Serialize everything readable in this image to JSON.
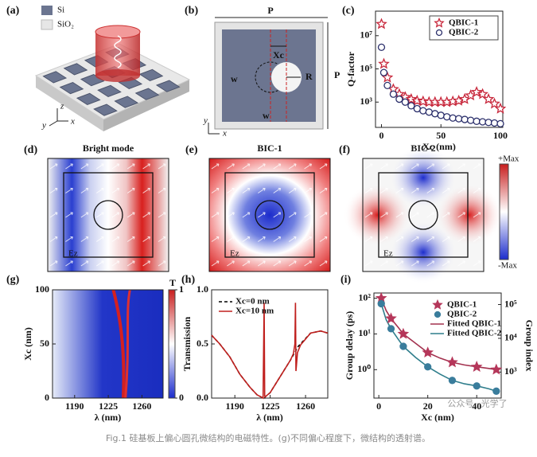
{
  "panels": {
    "a": {
      "label": "(a)",
      "materials": [
        "Si",
        "SiO₂"
      ],
      "axes": [
        "z",
        "y",
        "x"
      ]
    },
    "b": {
      "label": "(b)",
      "period_labels": [
        "P",
        "P"
      ],
      "offset": "Xc",
      "radius": "R",
      "width_labels": [
        "w",
        "w"
      ],
      "axes": [
        "y",
        "x"
      ]
    }
  },
  "field_maps": [
    {
      "panel": "(d)",
      "title": "Bright mode",
      "field": "Ez"
    },
    {
      "panel": "(e)",
      "title": "BIC-1",
      "field": "Ez"
    },
    {
      "panel": "(f)",
      "title": "BIC-2",
      "field": "Ez"
    }
  ],
  "field_colorbar": [
    "+Max",
    "-Max"
  ],
  "chart_data": [
    {
      "type": "scatter",
      "panel": "(c)",
      "xlabel": "Xc (nm)",
      "ylabel": "Q-factor",
      "xlim": [
        -5,
        102
      ],
      "xticks": [
        0,
        50,
        100
      ],
      "ylog": true,
      "ylim": [
        30,
        300000000
      ],
      "yticks": [
        {
          "value": 1000,
          "label": "10³"
        },
        {
          "value": 100000,
          "label": "10⁵"
        },
        {
          "value": 10000000,
          "label": "10⁷"
        }
      ],
      "legend": "upper right",
      "x": [
        0,
        2,
        5,
        10,
        15,
        20,
        25,
        30,
        35,
        40,
        45,
        50,
        55,
        60,
        65,
        70,
        75,
        80,
        85,
        90,
        95,
        100
      ],
      "series": [
        {
          "name": "QBIC-1",
          "color": "#c8283c",
          "marker": "star",
          "filled": false,
          "values": [
            50000000,
            200000,
            30000,
            6000,
            3000,
            2000,
            1500,
            1200,
            1100,
            1000,
            1000,
            1000,
            1000,
            1100,
            1200,
            1500,
            2500,
            4000,
            3000,
            1500,
            800,
            400
          ]
        },
        {
          "name": "QBIC-2",
          "color": "#2b2f6b",
          "marker": "circle",
          "filled": false,
          "values": [
            2000000,
            60000,
            10000,
            3000,
            1500,
            1000,
            600,
            400,
            300,
            250,
            200,
            160,
            130,
            110,
            100,
            90,
            80,
            70,
            65,
            60,
            55,
            50
          ]
        }
      ]
    },
    {
      "type": "heatmap",
      "panel": "(g)",
      "xlabel": "λ (nm)",
      "ylabel": "Xc (nm)",
      "xlim": [
        1167,
        1282
      ],
      "xticks": [
        1190,
        1225,
        1260
      ],
      "ylim": [
        0,
        100
      ],
      "yticks": [
        0,
        50,
        100
      ],
      "colorbar": {
        "label": "T",
        "lim": [
          0,
          1
        ],
        "ticks": [
          0,
          1
        ]
      }
    },
    {
      "type": "line",
      "panel": "(h)",
      "xlabel": "λ (nm)",
      "ylabel": "Transmission",
      "xlim": [
        1167,
        1282
      ],
      "xticks": [
        1190,
        1225,
        1260
      ],
      "ylim": [
        0,
        1
      ],
      "yticks": [
        {
          "value": 0,
          "label": "0.0"
        },
        {
          "value": 0.5,
          "label": "0.5"
        },
        {
          "value": 1,
          "label": "1.0"
        }
      ],
      "legend": "upper left",
      "x": [
        1167,
        1175,
        1185,
        1195,
        1205,
        1212,
        1216,
        1218,
        1219,
        1219.5,
        1220,
        1221,
        1225,
        1235,
        1245,
        1248,
        1249.5,
        1250,
        1250.5,
        1251,
        1252,
        1255,
        1265,
        1275,
        1282
      ],
      "series": [
        {
          "name": "Xc=0 nm",
          "color": "#000000",
          "dash": true,
          "values": [
            0.58,
            0.5,
            0.38,
            0.22,
            0.1,
            0.03,
            0.01,
            0,
            0,
            0,
            0.01,
            0.02,
            0.05,
            0.2,
            0.35,
            0.4,
            0.42,
            0.43,
            0.44,
            0.45,
            0.47,
            0.5,
            0.6,
            0.62,
            0.6
          ]
        },
        {
          "name": "Xc=10 nm",
          "color": "#c0201e",
          "dash": false,
          "values": [
            0.58,
            0.5,
            0.38,
            0.22,
            0.1,
            0.03,
            0.01,
            0,
            0.88,
            0.02,
            0.01,
            0.02,
            0.05,
            0.2,
            0.35,
            0.41,
            0.5,
            0.88,
            0.25,
            0.3,
            0.42,
            0.49,
            0.6,
            0.62,
            0.6
          ]
        }
      ]
    },
    {
      "type": "scatter",
      "panel": "(i)",
      "xlabel": "Xc (nm)",
      "ylabel": "Group delay (ps)",
      "y2label": "Group index",
      "xlim": [
        -2,
        50
      ],
      "xticks": [
        0,
        20,
        40
      ],
      "ylog": true,
      "ylim": [
        0.16,
        140
      ],
      "yticks": [
        {
          "value": 1,
          "label": "10⁰"
        },
        {
          "value": 10,
          "label": "10¹"
        },
        {
          "value": 100,
          "label": "10²"
        }
      ],
      "y2log": true,
      "y2lim": [
        170,
        220000
      ],
      "y2ticks": [
        {
          "value": 1000,
          "label": "10³"
        },
        {
          "value": 10000,
          "label": "10⁴"
        },
        {
          "value": 100000,
          "label": "10⁵"
        }
      ],
      "legend": "upper right",
      "series": [
        {
          "name": "QBIC-1",
          "color": "#b5375a",
          "marker": "star",
          "filled": true,
          "x": [
            1,
            5,
            10,
            20,
            30,
            40,
            48
          ],
          "values": [
            100,
            27,
            10,
            3,
            1.6,
            1.2,
            1.0
          ]
        },
        {
          "name": "QBIC-2",
          "color": "#3a7d9c",
          "marker": "circle",
          "filled": true,
          "x": [
            1,
            5,
            10,
            20,
            30,
            40,
            48
          ],
          "values": [
            70,
            14,
            4.5,
            1.2,
            0.5,
            0.35,
            0.25
          ]
        },
        {
          "name": "Fitted QBIC-1",
          "color": "#a3324f",
          "x": [
            1,
            3,
            5,
            8,
            10,
            15,
            20,
            25,
            30,
            35,
            40,
            45,
            48
          ],
          "values": [
            100,
            45,
            27,
            15,
            10,
            5.5,
            3,
            2.1,
            1.6,
            1.35,
            1.2,
            1.08,
            1.0
          ]
        },
        {
          "name": "Fitted QBIC-2",
          "color": "#2f7e8c",
          "x": [
            1,
            3,
            5,
            8,
            10,
            15,
            20,
            25,
            30,
            35,
            40,
            45,
            48
          ],
          "values": [
            70,
            25,
            14,
            7,
            4.5,
            2.2,
            1.2,
            0.75,
            0.5,
            0.4,
            0.35,
            0.29,
            0.25
          ]
        }
      ]
    }
  ],
  "watermark": "公众号 · 光学了",
  "caption": "Fig.1 硅基板上偏心圆孔微结构的电磁特性。(g)不同偏心程度下，微结构的透射谱。"
}
